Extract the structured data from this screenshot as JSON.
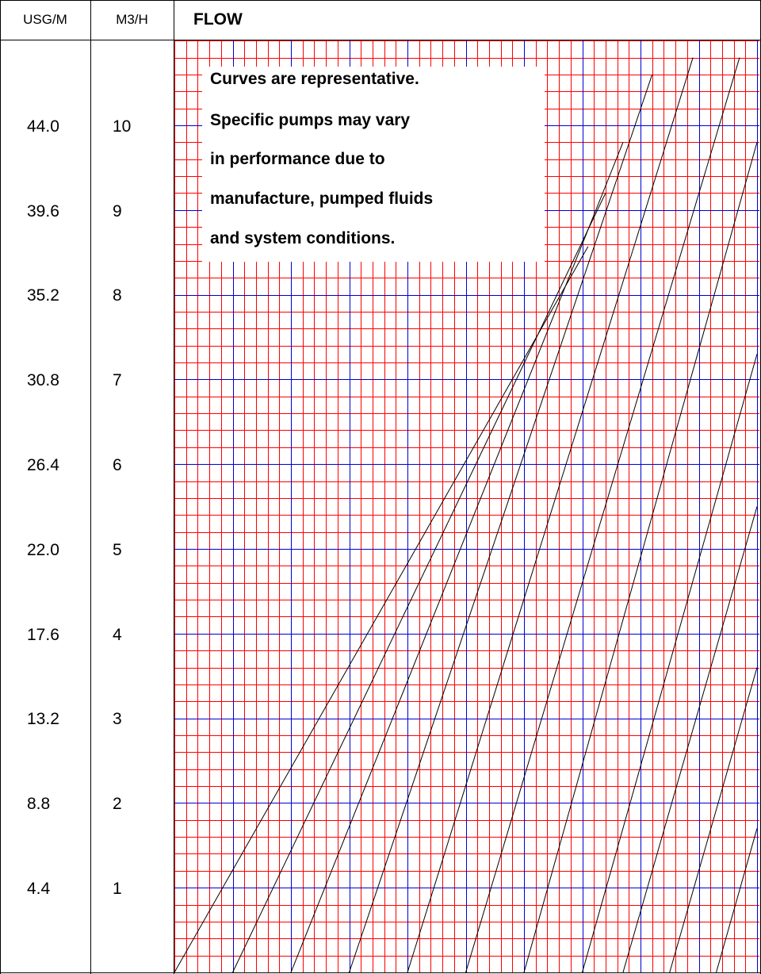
{
  "header": {
    "col1": "USG/M",
    "col2": "M3/H",
    "title": "FLOW"
  },
  "note": {
    "lines": [
      "Curves are representative.",
      "Specific pumps may vary",
      "in performance due to",
      "manufacture, pumped fluids",
      "and system conditions."
    ]
  },
  "colors": {
    "minor_grid": "#ff0000",
    "major_grid": "#0000cc",
    "curves": "#000000",
    "frame": "#000000"
  },
  "chart_data": {
    "type": "line",
    "title": "FLOW",
    "ylabel": "M3/H",
    "ylabel_secondary": "USG/M",
    "ylim": [
      0,
      10.8
    ],
    "grid": true,
    "ticks_m3h": [
      10,
      9,
      8,
      7,
      6,
      5,
      4,
      3,
      2,
      1
    ],
    "ticks_usgm": [
      "44.0",
      "39.6",
      "35.2",
      "30.8",
      "26.4",
      "22.0",
      "17.6",
      "13.2",
      "8.8",
      "4.4"
    ],
    "series": [
      {
        "points": [
          [
            0,
            0
          ],
          [
            7.1,
            8.57
          ]
        ]
      },
      {
        "points": [
          [
            1.0,
            0
          ],
          [
            7.4,
            9.2
          ]
        ]
      },
      {
        "points": [
          [
            2.0,
            0
          ],
          [
            7.7,
            9.8
          ]
        ]
      },
      {
        "points": [
          [
            3.0,
            0
          ],
          [
            8.2,
            10.6
          ]
        ]
      },
      {
        "points": [
          [
            4.0,
            0
          ],
          [
            8.9,
            10.8
          ]
        ]
      },
      {
        "points": [
          [
            5.0,
            0
          ],
          [
            9.7,
            10.8
          ]
        ]
      },
      {
        "points": [
          [
            6.0,
            0
          ],
          [
            10.0,
            9.8
          ]
        ]
      },
      {
        "points": [
          [
            7.0,
            0
          ],
          [
            10.0,
            7.3
          ]
        ]
      },
      {
        "points": [
          [
            7.7,
            0
          ],
          [
            10.0,
            5.5
          ]
        ]
      },
      {
        "points": [
          [
            8.5,
            0
          ],
          [
            10.0,
            3.6
          ]
        ]
      },
      {
        "points": [
          [
            9.3,
            0
          ],
          [
            10.0,
            1.7
          ]
        ]
      }
    ]
  }
}
